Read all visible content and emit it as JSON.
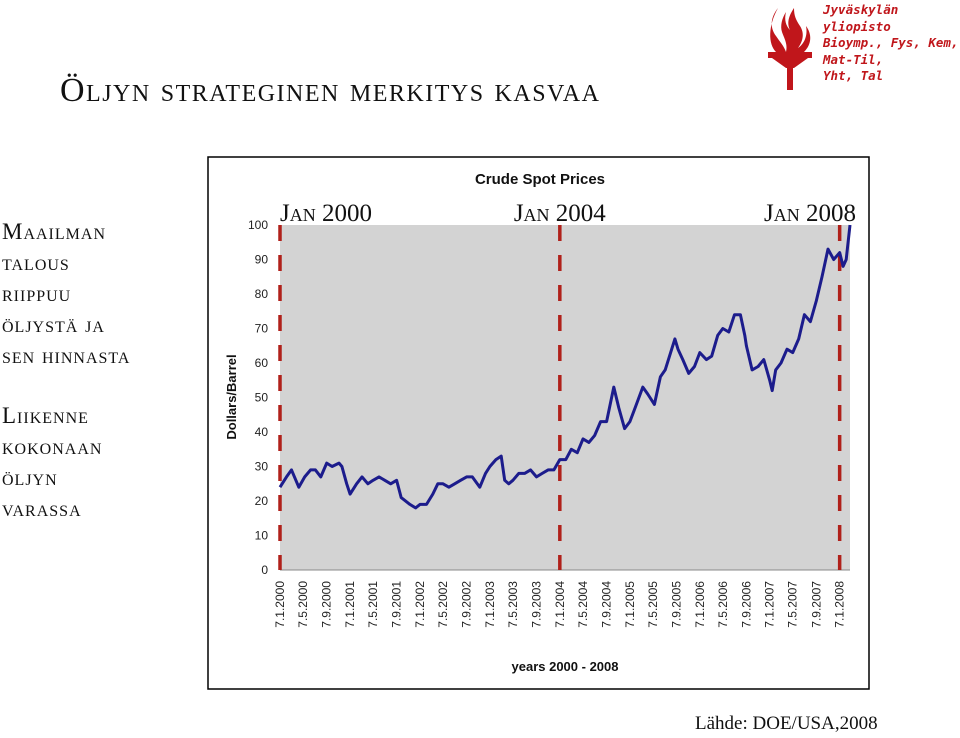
{
  "title": "Öljyn strateginen merkitys kasvaa",
  "institution": {
    "lines": [
      "Jyväskylän",
      "yliopisto",
      "Bioymp., Fys, Kem,",
      "Mat-Til,",
      "Yht, Tal"
    ],
    "logo_icon": "torch-icon",
    "color": "#c0161b"
  },
  "side_text": {
    "block1": [
      "Maailman",
      "talous",
      "riippuu",
      "öljystä ja",
      "sen hinnasta"
    ],
    "block2": [
      "Liikenne",
      "kokonaan",
      "öljyn",
      "varassa"
    ]
  },
  "source": "Lähde: DOE/USA,2008",
  "chart_data": {
    "type": "line",
    "title": "Crude Spot Prices",
    "xlabel": "years 2000 - 2008",
    "ylabel": "Dollars/Barrel",
    "ylim": [
      0,
      100
    ],
    "yticks": [
      0,
      10,
      20,
      30,
      40,
      50,
      60,
      70,
      80,
      90,
      100
    ],
    "xlim": [
      "2000-01-07",
      "2008-03-01"
    ],
    "grid": false,
    "plot_background": "#d3d3d3",
    "line_color": "#1c1c8c",
    "xtick_labels": [
      "7.1.2000",
      "7.5.2000",
      "7.9.2000",
      "7.1.2001",
      "7.5.2001",
      "7.9.2001",
      "7.1.2002",
      "7.5.2002",
      "7.9.2002",
      "7.1.2003",
      "7.5.2003",
      "7.9.2003",
      "7.1.2004",
      "7.5.2004",
      "7.9.2004",
      "7.1.2005",
      "7.5.2005",
      "7.9.2005",
      "7.1.2006",
      "7.5.2006",
      "7.9.2006",
      "7.1.2007",
      "7.5.2007",
      "7.9.2007",
      "7.1.2008"
    ],
    "xtick_dates": [
      "2000-01-07",
      "2000-05-07",
      "2000-09-07",
      "2001-01-07",
      "2001-05-07",
      "2001-09-07",
      "2002-01-07",
      "2002-05-07",
      "2002-09-07",
      "2003-01-07",
      "2003-05-07",
      "2003-09-07",
      "2004-01-07",
      "2004-05-07",
      "2004-09-07",
      "2005-01-07",
      "2005-05-07",
      "2005-09-07",
      "2006-01-07",
      "2006-05-07",
      "2006-09-07",
      "2007-01-07",
      "2007-05-07",
      "2007-09-07",
      "2008-01-07"
    ],
    "annotations": [
      {
        "text": "Jan 2000",
        "date": "2000-01-07"
      },
      {
        "text": "Jan 2004",
        "date": "2004-01-07"
      },
      {
        "text": "Jan 2008",
        "date": "2008-01-07"
      }
    ],
    "marker_color": "#b0201a",
    "series": [
      {
        "points": [
          [
            "2000-01-07",
            24
          ],
          [
            "2000-02-10",
            27
          ],
          [
            "2000-03-07",
            29
          ],
          [
            "2000-04-14",
            24
          ],
          [
            "2000-05-15",
            27
          ],
          [
            "2000-06-15",
            29
          ],
          [
            "2000-07-10",
            29
          ],
          [
            "2000-08-07",
            27
          ],
          [
            "2000-09-07",
            31
          ],
          [
            "2000-10-05",
            30
          ],
          [
            "2000-11-10",
            31
          ],
          [
            "2000-11-25",
            30
          ],
          [
            "2000-12-20",
            25
          ],
          [
            "2001-01-07",
            22
          ],
          [
            "2001-02-10",
            25
          ],
          [
            "2001-03-10",
            27
          ],
          [
            "2001-04-10",
            25
          ],
          [
            "2001-05-07",
            26
          ],
          [
            "2001-06-07",
            27
          ],
          [
            "2001-07-07",
            26
          ],
          [
            "2001-08-07",
            25
          ],
          [
            "2001-09-07",
            26
          ],
          [
            "2001-10-01",
            21
          ],
          [
            "2001-11-15",
            19
          ],
          [
            "2001-12-15",
            18
          ],
          [
            "2002-01-07",
            19
          ],
          [
            "2002-02-10",
            19
          ],
          [
            "2002-03-15",
            22
          ],
          [
            "2002-04-10",
            25
          ],
          [
            "2002-05-07",
            25
          ],
          [
            "2002-06-07",
            24
          ],
          [
            "2002-07-07",
            25
          ],
          [
            "2002-08-07",
            26
          ],
          [
            "2002-09-07",
            27
          ],
          [
            "2002-10-07",
            27
          ],
          [
            "2002-11-15",
            24
          ],
          [
            "2002-12-15",
            28
          ],
          [
            "2003-01-07",
            30
          ],
          [
            "2003-02-07",
            32
          ],
          [
            "2003-03-07",
            33
          ],
          [
            "2003-03-25",
            26
          ],
          [
            "2003-04-15",
            25
          ],
          [
            "2003-05-07",
            26
          ],
          [
            "2003-06-07",
            28
          ],
          [
            "2003-07-07",
            28
          ],
          [
            "2003-08-07",
            29
          ],
          [
            "2003-09-07",
            27
          ],
          [
            "2003-10-07",
            28
          ],
          [
            "2003-11-07",
            29
          ],
          [
            "2003-12-07",
            29
          ],
          [
            "2004-01-07",
            32
          ],
          [
            "2004-02-07",
            32
          ],
          [
            "2004-03-07",
            35
          ],
          [
            "2004-04-07",
            34
          ],
          [
            "2004-05-07",
            38
          ],
          [
            "2004-06-07",
            37
          ],
          [
            "2004-07-07",
            39
          ],
          [
            "2004-08-07",
            43
          ],
          [
            "2004-09-07",
            43
          ],
          [
            "2004-10-15",
            53
          ],
          [
            "2004-11-10",
            47
          ],
          [
            "2004-12-10",
            41
          ],
          [
            "2005-01-07",
            43
          ],
          [
            "2005-02-10",
            48
          ],
          [
            "2005-03-15",
            53
          ],
          [
            "2005-04-10",
            51
          ],
          [
            "2005-05-15",
            48
          ],
          [
            "2005-06-15",
            56
          ],
          [
            "2005-07-10",
            58
          ],
          [
            "2005-08-30",
            67
          ],
          [
            "2005-09-15",
            64
          ],
          [
            "2005-10-10",
            61
          ],
          [
            "2005-11-10",
            57
          ],
          [
            "2005-12-10",
            59
          ],
          [
            "2006-01-07",
            63
          ],
          [
            "2006-02-10",
            61
          ],
          [
            "2006-03-10",
            62
          ],
          [
            "2006-04-10",
            68
          ],
          [
            "2006-05-07",
            70
          ],
          [
            "2006-06-07",
            69
          ],
          [
            "2006-07-07",
            74
          ],
          [
            "2006-08-07",
            74
          ],
          [
            "2006-08-30",
            68
          ],
          [
            "2006-09-07",
            65
          ],
          [
            "2006-10-07",
            58
          ],
          [
            "2006-11-07",
            59
          ],
          [
            "2006-12-07",
            61
          ],
          [
            "2007-01-07",
            55
          ],
          [
            "2007-01-20",
            52
          ],
          [
            "2007-02-07",
            58
          ],
          [
            "2007-03-07",
            60
          ],
          [
            "2007-04-07",
            64
          ],
          [
            "2007-05-07",
            63
          ],
          [
            "2007-06-07",
            67
          ],
          [
            "2007-07-07",
            74
          ],
          [
            "2007-08-07",
            72
          ],
          [
            "2007-09-07",
            78
          ],
          [
            "2007-10-07",
            85
          ],
          [
            "2007-11-07",
            93
          ],
          [
            "2007-12-07",
            90
          ],
          [
            "2008-01-07",
            92
          ],
          [
            "2008-01-25",
            88
          ],
          [
            "2008-02-10",
            90
          ],
          [
            "2008-03-01",
            100
          ]
        ]
      }
    ]
  }
}
